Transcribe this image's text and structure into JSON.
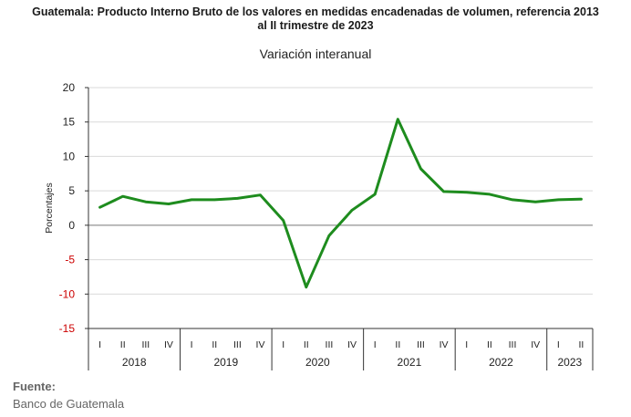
{
  "title_line1": "Guatemala: Producto Interno Bruto de los valores en medidas encadenadas  de volumen, referencia 2013",
  "title_line2": "al II trimestre de 2023",
  "source_label": "Fuente:",
  "source_value": "Banco de Guatemala",
  "colors": {
    "line": "#1e8c1e",
    "negative_tick": "#cc0000",
    "axis": "#333333",
    "grid": "#d9d9d9"
  },
  "chart_data": {
    "type": "line",
    "title": "Variación interanual",
    "ylabel": "Porcentajes",
    "ylim": [
      -15,
      20
    ],
    "yticks": [
      20,
      15,
      10,
      5,
      0,
      -5,
      -10,
      -15
    ],
    "grid": true,
    "quarters": [
      "I",
      "II",
      "III",
      "IV",
      "I",
      "II",
      "III",
      "IV",
      "I",
      "II",
      "III",
      "IV",
      "I",
      "II",
      "III",
      "IV",
      "I",
      "II",
      "III",
      "IV",
      "I",
      "II"
    ],
    "years": [
      {
        "label": "2018",
        "count": 4
      },
      {
        "label": "2019",
        "count": 4
      },
      {
        "label": "2020",
        "count": 4
      },
      {
        "label": "2021",
        "count": 4
      },
      {
        "label": "2022",
        "count": 4
      },
      {
        "label": "2023",
        "count": 2
      }
    ],
    "series": [
      {
        "values": [
          2.6,
          4.2,
          3.4,
          3.1,
          3.7,
          3.7,
          3.9,
          4.4,
          0.7,
          -9.0,
          -1.5,
          2.2,
          4.5,
          15.4,
          8.2,
          4.9,
          4.8,
          4.5,
          3.7,
          3.4,
          3.7,
          3.8
        ]
      }
    ]
  }
}
